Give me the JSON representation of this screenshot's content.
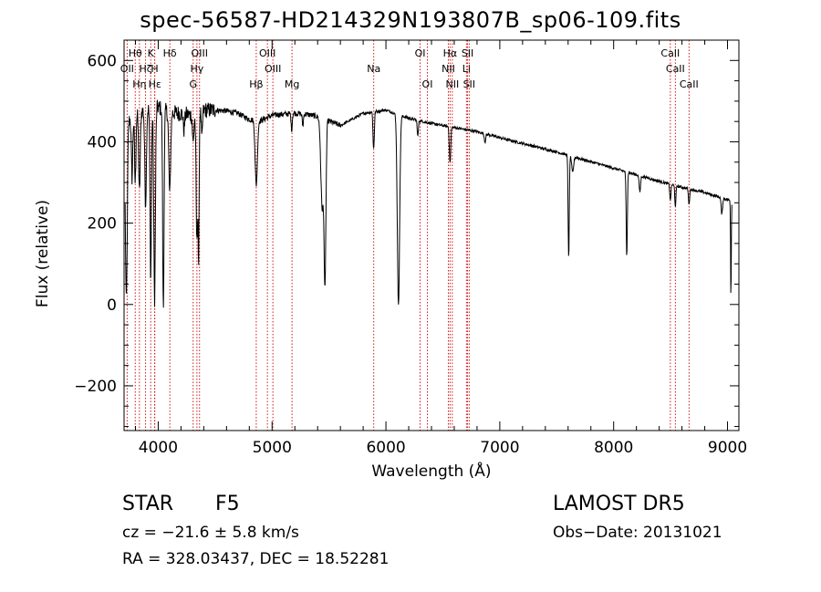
{
  "page": {
    "title": "spec-56587-HD214329N193807B_sp06-109.fits",
    "star_label": "STAR",
    "spectral_type": "F5",
    "survey": "LAMOST DR5",
    "velocity": "cz = −21.6 ± 5.8 km/s",
    "obs_date": "Obs−Date: 20131021",
    "coords": "RA = 328.03437, DEC =  18.52281"
  },
  "chart_data": {
    "type": "line",
    "title": "spec-56587-HD214329N193807B_sp06-109.fits",
    "xlabel": "Wavelength (Å)",
    "ylabel": "Flux (relative)",
    "xlim": [
      3700,
      9100
    ],
    "ylim": [
      -310,
      650
    ],
    "x_ticks": [
      4000,
      5000,
      6000,
      7000,
      8000,
      9000
    ],
    "y_ticks": [
      -200,
      0,
      200,
      400,
      600
    ],
    "grid": false,
    "line_color": "#000000",
    "marker_color": "#cc0000",
    "continuum": [
      [
        3700,
        440
      ],
      [
        3800,
        470
      ],
      [
        3900,
        480
      ],
      [
        4000,
        485
      ],
      [
        4100,
        472
      ],
      [
        4200,
        470
      ],
      [
        4300,
        465
      ],
      [
        4400,
        478
      ],
      [
        4500,
        478
      ],
      [
        4600,
        476
      ],
      [
        4700,
        470
      ],
      [
        4800,
        455
      ],
      [
        4900,
        452
      ],
      [
        5000,
        465
      ],
      [
        5100,
        468
      ],
      [
        5200,
        470
      ],
      [
        5300,
        468
      ],
      [
        5400,
        462
      ],
      [
        5600,
        440
      ],
      [
        5800,
        470
      ],
      [
        6000,
        478
      ],
      [
        6200,
        458
      ],
      [
        6400,
        445
      ],
      [
        6600,
        435
      ],
      [
        6800,
        425
      ],
      [
        7000,
        410
      ],
      [
        7500,
        375
      ],
      [
        8000,
        335
      ],
      [
        8500,
        295
      ],
      [
        8800,
        275
      ],
      [
        9000,
        258
      ],
      [
        9100,
        250
      ]
    ],
    "absorptions": [
      {
        "center": 3720,
        "depth": 440,
        "width": 8
      },
      {
        "center": 3770,
        "depth": 150,
        "width": 6
      },
      {
        "center": 3798,
        "depth": 170,
        "width": 6
      },
      {
        "center": 3835,
        "depth": 200,
        "width": 7
      },
      {
        "center": 3889,
        "depth": 230,
        "width": 7
      },
      {
        "center": 3934,
        "depth": 420,
        "width": 6
      },
      {
        "center": 3968,
        "depth": 470,
        "width": 7
      },
      {
        "center": 4045,
        "depth": 490,
        "width": 6
      },
      {
        "center": 4101,
        "depth": 200,
        "width": 8
      },
      {
        "center": 4226,
        "depth": 40,
        "width": 6
      },
      {
        "center": 4307,
        "depth": 70,
        "width": 6
      },
      {
        "center": 4340,
        "depth": 320,
        "width": 7
      },
      {
        "center": 4355,
        "depth": 360,
        "width": 4
      },
      {
        "center": 4384,
        "depth": 70,
        "width": 5
      },
      {
        "center": 4861,
        "depth": 160,
        "width": 10
      },
      {
        "center": 5172,
        "depth": 40,
        "width": 5
      },
      {
        "center": 5270,
        "depth": 30,
        "width": 5
      },
      {
        "center": 5440,
        "depth": 220,
        "width": 12
      },
      {
        "center": 5465,
        "depth": 390,
        "width": 8
      },
      {
        "center": 5889,
        "depth": 70,
        "width": 4
      },
      {
        "center": 5896,
        "depth": 60,
        "width": 4
      },
      {
        "center": 6110,
        "depth": 470,
        "width": 10
      },
      {
        "center": 6280,
        "depth": 40,
        "width": 5
      },
      {
        "center": 6563,
        "depth": 90,
        "width": 6
      },
      {
        "center": 6870,
        "depth": 20,
        "width": 6
      },
      {
        "center": 7605,
        "depth": 250,
        "width": 5
      },
      {
        "center": 7640,
        "depth": 40,
        "width": 8
      },
      {
        "center": 8115,
        "depth": 210,
        "width": 5
      },
      {
        "center": 8230,
        "depth": 40,
        "width": 6
      },
      {
        "center": 8498,
        "depth": 40,
        "width": 5
      },
      {
        "center": 8542,
        "depth": 50,
        "width": 5
      },
      {
        "center": 8662,
        "depth": 40,
        "width": 5
      },
      {
        "center": 8950,
        "depth": 40,
        "width": 6
      },
      {
        "center": 9030,
        "depth": 240,
        "width": 3
      }
    ],
    "line_markers": [
      {
        "label": "Hδ",
        "wavelength": 4102,
        "row": 1
      },
      {
        "label": "Hγ",
        "wavelength": 4340,
        "row": 2
      },
      {
        "label": "Hβ",
        "wavelength": 4861,
        "row": 3
      },
      {
        "label": "Hα",
        "wavelength": 6563,
        "row": 1
      },
      {
        "label": "K",
        "wavelength": 3934,
        "row": 1
      },
      {
        "label": "H",
        "wavelength": 3969,
        "row": 2
      },
      {
        "label": "OII",
        "wavelength": 3727,
        "row": 2
      },
      {
        "label": "OIII",
        "wavelength": 4363,
        "row": 1
      },
      {
        "label": "G",
        "wavelength": 4307,
        "row": 3
      },
      {
        "label": "OIII",
        "wavelength": 4959,
        "row": 1
      },
      {
        "label": "OIII",
        "wavelength": 5007,
        "row": 2
      },
      {
        "label": "Mg",
        "wavelength": 5175,
        "row": 3
      },
      {
        "label": "Na",
        "wavelength": 5893,
        "row": 2
      },
      {
        "label": "OI",
        "wavelength": 6300,
        "row": 1
      },
      {
        "label": "OI",
        "wavelength": 6364,
        "row": 3
      },
      {
        "label": "NII",
        "wavelength": 6548,
        "row": 2
      },
      {
        "label": "NII",
        "wavelength": 6583,
        "row": 3
      },
      {
        "label": "SII",
        "wavelength": 6717,
        "row": 1
      },
      {
        "label": "Li",
        "wavelength": 6707,
        "row": 2
      },
      {
        "label": "SII",
        "wavelength": 6731,
        "row": 3
      },
      {
        "label": "CaII",
        "wavelength": 8498,
        "row": 1
      },
      {
        "label": "CaII",
        "wavelength": 8542,
        "row": 2
      },
      {
        "label": "CaII",
        "wavelength": 8662,
        "row": 3
      },
      {
        "label": "Hθ",
        "wavelength": 3798,
        "row": 1
      },
      {
        "label": "Hη",
        "wavelength": 3835,
        "row": 3
      },
      {
        "label": "Hζ",
        "wavelength": 3889,
        "row": 2
      },
      {
        "label": "Hε",
        "wavelength": 3970,
        "row": 3
      }
    ]
  }
}
